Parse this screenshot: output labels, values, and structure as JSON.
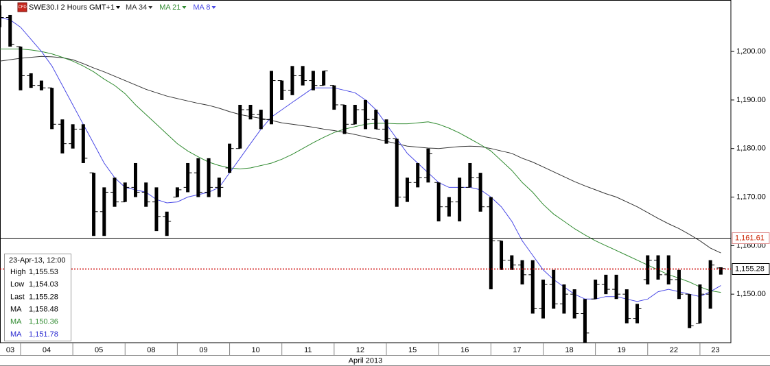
{
  "chart_data": {
    "type": "ohlc",
    "title": "SWE30.I 2 Hours GMT+1",
    "x_axis_month": "April 2013",
    "categories": [
      "03",
      null,
      "04",
      null,
      null,
      null,
      null,
      "05",
      null,
      null,
      null,
      null,
      "08",
      null,
      null,
      null,
      null,
      "09",
      null,
      null,
      null,
      null,
      "10",
      null,
      null,
      null,
      null,
      "11",
      null,
      null,
      null,
      null,
      "12",
      null,
      null,
      null,
      null,
      "15",
      null,
      null,
      null,
      null,
      "16",
      null,
      null,
      null,
      null,
      "17",
      null,
      null,
      null,
      null,
      "18",
      null,
      null,
      null,
      null,
      "19",
      null,
      null,
      null,
      null,
      "22",
      null,
      null,
      null,
      null,
      "23",
      null,
      null
    ],
    "open": [
      1208,
      1207,
      1201,
      1195,
      1193,
      1192.5,
      1185,
      1181,
      1184,
      1175,
      1167,
      1171,
      1169,
      1172,
      1171,
      1169,
      1166,
      1170,
      1172,
      1175,
      1171,
      1172,
      1176,
      1180,
      1188,
      1187,
      1186,
      1194,
      1192,
      1195,
      1194,
      1193,
      1193,
      1189,
      1185,
      1188,
      1186,
      1184,
      1182,
      1170,
      1173,
      1174,
      1173,
      1168,
      1169,
      1172,
      1174,
      1168,
      1161,
      1157,
      1156,
      1154,
      1147,
      1152,
      1148,
      1150,
      1146,
      1149,
      1152,
      1151,
      1150,
      1145,
      1153,
      1157,
      1154,
      1153,
      1150,
      1144,
      1150,
      1155.4
    ],
    "high": [
      1209.5,
      1207.5,
      1201,
      1195.5,
      1194,
      1192.5,
      1186,
      1185,
      1185,
      1175,
      1172,
      1174,
      1173,
      1177,
      1173,
      1172,
      1167,
      1172,
      1177,
      1178,
      1178,
      1174,
      1181,
      1189,
      1189,
      1188,
      1196,
      1194,
      1197,
      1197,
      1196,
      1196,
      1193,
      1189,
      1189,
      1190,
      1188,
      1186,
      1182,
      1174,
      1177,
      1180,
      1173,
      1170,
      1174,
      1177,
      1175,
      1170,
      1161,
      1158,
      1157,
      1157,
      1153,
      1155,
      1152,
      1151,
      1149,
      1153,
      1154,
      1154,
      1151,
      1148,
      1158,
      1158,
      1158,
      1155,
      1150,
      1152,
      1157,
      1155.53
    ],
    "low": [
      1205,
      1201,
      1192,
      1192.5,
      1192,
      1184,
      1179,
      1180,
      1177,
      1162,
      1162,
      1168,
      1169,
      1170,
      1168,
      1163,
      1162,
      1170,
      1171,
      1170,
      1170,
      1170,
      1175,
      1180,
      1186,
      1184,
      1185,
      1190,
      1191,
      1193,
      1192,
      1193,
      1188,
      1183,
      1185,
      1184,
      1184,
      1181,
      1168,
      1169,
      1172,
      1173,
      1165,
      1166,
      1165,
      1172,
      1167,
      1151,
      1155,
      1155,
      1152,
      1146,
      1145,
      1147,
      1146,
      1145,
      1140,
      1149,
      1150,
      1149,
      1144,
      1144,
      1152,
      1153,
      1152,
      1149,
      1143,
      1144,
      1147,
      1154.03
    ],
    "close": [
      1207,
      1201.5,
      1195,
      1193,
      1192.5,
      1185,
      1181,
      1184,
      1178,
      1167,
      1171,
      1169,
      1172,
      1171,
      1169,
      1166,
      1165,
      1171.5,
      1175,
      1171,
      1172,
      1172,
      1180,
      1188,
      1187,
      1186,
      1194,
      1192,
      1195,
      1194,
      1193,
      1196,
      1189,
      1185,
      1188,
      1186,
      1184,
      1182,
      1170,
      1173,
      1174,
      1179,
      1168,
      1169,
      1172,
      1174,
      1168,
      1161,
      1157,
      1156,
      1154,
      1147,
      1152,
      1148,
      1150,
      1146,
      1142,
      1152,
      1151,
      1150,
      1145,
      1147,
      1157,
      1154,
      1153,
      1150,
      1143.5,
      1150,
      1156,
      1155.28
    ],
    "series": [
      {
        "name": "MA 34",
        "color": "#333333",
        "values": [
          1198,
          1198.3,
          1198.6,
          1198.8,
          1199,
          1198.9,
          1198.7,
          1198.3,
          1197.5,
          1196.6,
          1195.8,
          1194.9,
          1194,
          1193.1,
          1192.2,
          1191.5,
          1190.8,
          1190.3,
          1189.8,
          1189.3,
          1188.9,
          1188.3,
          1187.6,
          1187,
          1186.6,
          1186.2,
          1185.8,
          1185.3,
          1185,
          1184.7,
          1184.4,
          1184,
          1183.7,
          1183.3,
          1182.9,
          1182.4,
          1182,
          1181.5,
          1181,
          1180.5,
          1180.3,
          1180.1,
          1180,
          1180.2,
          1180.4,
          1180.5,
          1180.4,
          1180,
          1179.5,
          1179,
          1178,
          1177.2,
          1176.2,
          1175.2,
          1174.2,
          1173.2,
          1172.3,
          1171.5,
          1170.7,
          1170,
          1169,
          1168,
          1166.8,
          1165.6,
          1164.5,
          1163.5,
          1162.3,
          1161,
          1159.5,
          1158.48
        ]
      },
      {
        "name": "MA 21",
        "color": "#2f8a2f",
        "values": [
          1200.5,
          1200.5,
          1200.5,
          1200.3,
          1200,
          1199.5,
          1198.8,
          1198,
          1197,
          1195.8,
          1194.3,
          1193,
          1191.3,
          1189,
          1187,
          1185,
          1183,
          1181,
          1179.5,
          1178.3,
          1177.2,
          1176.5,
          1176,
          1175.8,
          1176,
          1176.5,
          1177,
          1177.8,
          1178.8,
          1180,
          1181.2,
          1182.3,
          1183.3,
          1184,
          1184.5,
          1185,
          1185.2,
          1185.2,
          1185.1,
          1185.1,
          1185.3,
          1185.5,
          1185,
          1184.2,
          1183.2,
          1182,
          1180.8,
          1179.5,
          1177.5,
          1175.5,
          1173,
          1171,
          1168.5,
          1166.5,
          1165,
          1163.5,
          1162.2,
          1161,
          1160,
          1159,
          1158,
          1157,
          1156,
          1155,
          1154,
          1153.3,
          1152.5,
          1151.5,
          1150.7,
          1150.36
        ]
      },
      {
        "name": "MA 8",
        "color": "#4a4ae6",
        "values": [
          1207,
          1206.5,
          1205,
          1202.5,
          1200,
          1197,
          1193,
          1189,
          1185,
          1181,
          1177,
          1174,
          1172,
          1171.5,
          1171,
          1169.5,
          1168.8,
          1169,
          1170,
          1170.5,
          1171,
          1172,
          1175,
          1178,
          1181,
          1184,
          1186.5,
          1188,
          1189.5,
          1191,
          1192.5,
          1192.5,
          1192.5,
          1192,
          1191.5,
          1190,
          1188,
          1185,
          1182,
          1179,
          1177,
          1175,
          1173,
          1172,
          1172,
          1172,
          1171.5,
          1170,
          1168,
          1165,
          1161,
          1158,
          1155,
          1153,
          1151.5,
          1150,
          1149,
          1149,
          1149.5,
          1149.5,
          1149,
          1148.5,
          1149,
          1150.5,
          1151,
          1150.5,
          1150,
          1149.5,
          1150.5,
          1151.78
        ]
      }
    ],
    "bar_color": "#000000",
    "ylim": [
      1140,
      1210.6
    ],
    "yticks": [
      {
        "value": 1150,
        "label": "1,150.00"
      },
      {
        "value": 1160,
        "label": "1,160.00"
      },
      {
        "value": 1170,
        "label": "1,170.00"
      },
      {
        "value": 1180,
        "label": "1,180.00"
      },
      {
        "value": 1190,
        "label": "1,190.00"
      },
      {
        "value": 1200,
        "label": "1,200.00"
      }
    ],
    "grid": false,
    "reference_lines": [
      {
        "value": 1161.61,
        "label": "1,161.61",
        "color": "#000000",
        "style": "solid",
        "label_color": "#cc2200"
      },
      {
        "value": 1155.28,
        "label": "1,155.28",
        "color": "#cc0000",
        "style": "dotted",
        "label_color": "#000000"
      }
    ],
    "info_box": {
      "title": "23-Apr-13, 12:00",
      "rows": [
        {
          "label": "High",
          "value": "1,155.53",
          "color": "#000000"
        },
        {
          "label": "Low",
          "value": "1,154.03",
          "color": "#000000"
        },
        {
          "label": "Last",
          "value": "1,155.28",
          "color": "#000000"
        },
        {
          "label": "MA",
          "value": "1,158.48",
          "color": "#000000"
        },
        {
          "label": "MA",
          "value": "1,150.36",
          "color": "#2f8a2f"
        },
        {
          "label": "MA",
          "value": "1,151.78",
          "color": "#2828d0"
        }
      ]
    }
  }
}
